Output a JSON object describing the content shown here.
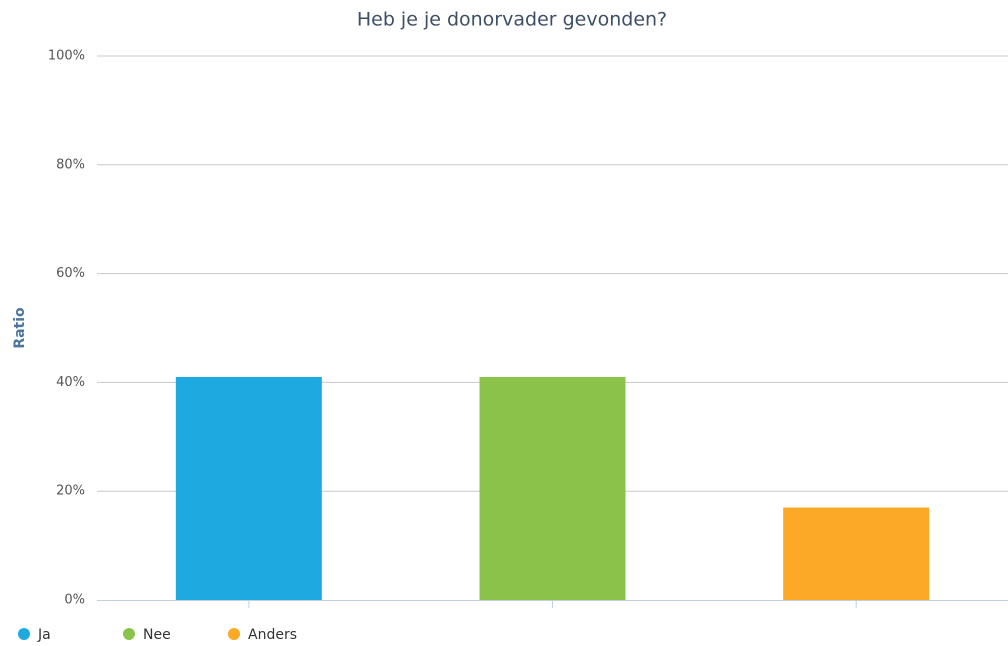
{
  "chart_data": {
    "type": "bar",
    "title": "Heb je je donorvader gevonden?",
    "y_label": "Ratio",
    "categories": [
      null,
      null,
      null
    ],
    "series": [
      {
        "name": "Ja",
        "color": "#1fa9e1",
        "values": [
          41,
          null,
          null
        ]
      },
      {
        "name": "Nee",
        "color": "#8bc34a",
        "values": [
          null,
          41,
          null
        ]
      },
      {
        "name": "Anders",
        "color": "#fba926",
        "values": [
          null,
          null,
          17
        ]
      }
    ],
    "ylim": [
      0,
      100
    ],
    "yticks": [
      {
        "value": 0,
        "label": "0%"
      },
      {
        "value": 20,
        "label": "20%"
      },
      {
        "value": 40,
        "label": "40%"
      },
      {
        "value": 60,
        "label": "60%"
      },
      {
        "value": 80,
        "label": "80%"
      },
      {
        "value": 100,
        "label": "100%"
      }
    ],
    "grid": true,
    "legend": "bottom-left"
  }
}
